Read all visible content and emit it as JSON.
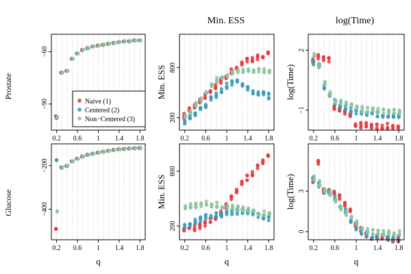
{
  "figure": {
    "column_titles": [
      "",
      "Min. ESS",
      "log(Time)"
    ],
    "row_labels": [
      "Prostate",
      "Glucose"
    ],
    "objective_ylabel": "",
    "x_axis_label": "q",
    "x_tick_labels": [
      "0.2",
      "0.6",
      "1",
      "1.4",
      "1.8"
    ],
    "colors": {
      "naive": "#e8383d",
      "centered": "#3d9ab5",
      "noncentered": "#8cc3a0"
    },
    "legend": {
      "entries": [
        {
          "key": "naive",
          "label": "Naive (1)"
        },
        {
          "key": "centered",
          "label": "Centered (2)"
        },
        {
          "key": "noncentered",
          "label": "Non−Centered (3)"
        }
      ]
    }
  },
  "chart_data": [
    {
      "id": "prostate-objective",
      "type": "scatter",
      "row": "Prostate",
      "column": "objective",
      "xlim": [
        0.1,
        1.9
      ],
      "ylim": [
        -105,
        -50
      ],
      "y_ticks": [
        -90,
        -60
      ],
      "ylabel": "",
      "x": [
        0.2,
        0.3,
        0.4,
        0.5,
        0.6,
        0.7,
        0.8,
        0.9,
        1.0,
        1.1,
        1.2,
        1.3,
        1.4,
        1.5,
        1.6,
        1.7,
        1.8
      ],
      "series": [
        {
          "name": "Naive (1)",
          "key": "naive",
          "values": [
            -97,
            -72,
            -71,
            -64,
            -61,
            -59,
            -58,
            -57,
            -56.5,
            -56,
            -55.5,
            -55,
            -54.5,
            -54,
            -54,
            -53.5,
            -53.5
          ]
        },
        {
          "name": "Centered (2)",
          "key": "centered",
          "values": [
            -98,
            -72,
            -71,
            -64,
            -61,
            -59,
            -58,
            -57,
            -56.5,
            -56,
            -55.5,
            -55,
            -54.5,
            -54,
            -54,
            -53.5,
            -53.5
          ]
        },
        {
          "name": "Non−Centered (3)",
          "key": "noncentered",
          "values": [
            -97.5,
            -72,
            -71,
            -64,
            -61,
            -59,
            -58,
            -57,
            -56.5,
            -56,
            -55.5,
            -55,
            -54.5,
            -54,
            -54,
            -53.5,
            -53.5
          ]
        }
      ]
    },
    {
      "id": "prostate-miness",
      "type": "scatter",
      "row": "Prostate",
      "column": "Min. ESS",
      "xlim": [
        0.1,
        1.9
      ],
      "ylim": [
        50,
        1200
      ],
      "y_ticks": [
        200,
        800
      ],
      "ylabel": "Min. ESS",
      "x": [
        0.2,
        0.3,
        0.4,
        0.5,
        0.6,
        0.7,
        0.8,
        0.9,
        1.0,
        1.1,
        1.2,
        1.3,
        1.4,
        1.5,
        1.6,
        1.7,
        1.8
      ],
      "series": [
        {
          "name": "Naive (1)",
          "key": "naive",
          "values": [
            220,
            300,
            330,
            400,
            460,
            520,
            580,
            640,
            700,
            760,
            800,
            850,
            880,
            900,
            920,
            940,
            960
          ]
        },
        {
          "name": "Centered (2)",
          "key": "centered",
          "values": [
            150,
            200,
            250,
            300,
            350,
            420,
            470,
            520,
            580,
            620,
            650,
            600,
            560,
            520,
            500,
            480,
            460
          ]
        },
        {
          "name": "Non−Centered (3)",
          "key": "noncentered",
          "values": [
            200,
            280,
            350,
            420,
            520,
            600,
            650,
            700,
            720,
            740,
            750,
            760,
            760,
            770,
            770,
            770,
            770
          ]
        }
      ]
    },
    {
      "id": "prostate-logtime",
      "type": "scatter",
      "row": "Prostate",
      "column": "log(Time)",
      "xlim": [
        0.1,
        1.9
      ],
      "ylim": [
        -2.0,
        2.8
      ],
      "y_ticks": [
        -1,
        2
      ],
      "ylabel": "log(Time)",
      "x": [
        0.2,
        0.3,
        0.4,
        0.5,
        0.6,
        0.7,
        0.8,
        0.9,
        1.0,
        1.1,
        1.2,
        1.3,
        1.4,
        1.5,
        1.6,
        1.7,
        1.8
      ],
      "series": [
        {
          "name": "Naive (1)",
          "key": "naive",
          "values": [
            1.5,
            1.7,
            1.6,
            1.5,
            -0.9,
            -1.0,
            -1.1,
            -1.2,
            -1.7,
            -1.75,
            -1.75,
            -1.8,
            -1.8,
            -1.8,
            -1.8,
            -1.8,
            -1.8
          ]
        },
        {
          "name": "Centered (2)",
          "key": "centered",
          "values": [
            1.4,
            1.2,
            0.2,
            -0.3,
            -0.6,
            -0.8,
            -0.9,
            -1.0,
            -1.1,
            -1.15,
            -1.2,
            -1.2,
            -1.2,
            -1.25,
            -1.25,
            -1.25,
            -1.25
          ]
        },
        {
          "name": "Non−Centered (3)",
          "key": "noncentered",
          "values": [
            1.8,
            1.3,
            0.3,
            -0.2,
            -0.5,
            -0.6,
            -0.7,
            -0.8,
            -0.9,
            -0.95,
            -1.0,
            -1.0,
            -1.0,
            -1.05,
            -1.05,
            -1.05,
            -1.05
          ]
        }
      ]
    },
    {
      "id": "glucose-objective",
      "type": "scatter",
      "row": "Glucose",
      "column": "objective",
      "xlim": [
        0.1,
        1.9
      ],
      "ylim": [
        -540,
        -100
      ],
      "y_ticks": [
        -400,
        -200
      ],
      "ylabel": "",
      "x": [
        0.2,
        0.3,
        0.4,
        0.5,
        0.6,
        0.7,
        0.8,
        0.9,
        1.0,
        1.1,
        1.2,
        1.3,
        1.4,
        1.5,
        1.6,
        1.7,
        1.8
      ],
      "series": [
        {
          "name": "Naive (1)",
          "key": "naive",
          "values": [
            -490,
            -208,
            -200,
            -180,
            -168,
            -158,
            -150,
            -145,
            -140,
            -136,
            -132,
            -128,
            -125,
            -123,
            -121,
            -120,
            -119
          ]
        },
        {
          "name": "Centered (2)",
          "key": "centered",
          "values": [
            -175,
            -210,
            -202,
            -181,
            -168,
            -158,
            -150,
            -145,
            -140,
            -136,
            -132,
            -128,
            -125,
            -123,
            -121,
            -120,
            -119
          ]
        },
        {
          "name": "Non−Centered (3)",
          "key": "noncentered",
          "values": [
            -410,
            -208,
            -200,
            -180,
            -168,
            -158,
            -150,
            -145,
            -140,
            -136,
            -132,
            -128,
            -125,
            -123,
            -121,
            -120,
            -119
          ]
        }
      ]
    },
    {
      "id": "glucose-miness",
      "type": "scatter",
      "row": "Glucose",
      "column": "Min. ESS",
      "xlim": [
        0.1,
        1.9
      ],
      "ylim": [
        50,
        1100
      ],
      "y_ticks": [
        200,
        800
      ],
      "ylabel": "Min. ESS",
      "x": [
        0.2,
        0.3,
        0.4,
        0.5,
        0.6,
        0.7,
        0.8,
        0.9,
        1.0,
        1.1,
        1.2,
        1.3,
        1.4,
        1.5,
        1.6,
        1.7,
        1.8
      ],
      "series": [
        {
          "name": "Naive (1)",
          "key": "naive",
          "values": [
            150,
            160,
            180,
            200,
            230,
            260,
            300,
            350,
            420,
            500,
            580,
            660,
            730,
            780,
            850,
            900,
            950
          ]
        },
        {
          "name": "Centered (2)",
          "key": "centered",
          "values": [
            200,
            220,
            250,
            280,
            300,
            310,
            320,
            330,
            340,
            350,
            360,
            360,
            350,
            340,
            320,
            300,
            280
          ]
        },
        {
          "name": "Non−Centered (3)",
          "key": "noncentered",
          "values": [
            400,
            420,
            430,
            440,
            450,
            440,
            430,
            420,
            410,
            400,
            390,
            380,
            370,
            360,
            350,
            340,
            330
          ]
        }
      ]
    },
    {
      "id": "glucose-logtime",
      "type": "scatter",
      "row": "Glucose",
      "column": "log(Time)",
      "xlim": [
        0.1,
        1.9
      ],
      "ylim": [
        -0.6,
        6.5
      ],
      "y_ticks": [
        0,
        3
      ],
      "ylabel": "log(Time)",
      "x": [
        0.2,
        0.3,
        0.4,
        0.5,
        0.6,
        0.7,
        0.8,
        0.9,
        1.0,
        1.1,
        1.2,
        1.3,
        1.4,
        1.5,
        1.6,
        1.7,
        1.8
      ],
      "series": [
        {
          "name": "Naive (1)",
          "key": "naive",
          "values": [
            3.8,
            5.2,
            3.0,
            3.0,
            2.8,
            2.6,
            2.0,
            1.5,
            0.5,
            0.2,
            -0.2,
            -0.4,
            -0.5,
            -0.55,
            -0.6,
            -0.6,
            -0.6
          ]
        },
        {
          "name": "Centered (2)",
          "key": "centered",
          "values": [
            3.9,
            3.5,
            3.0,
            2.9,
            2.5,
            2.0,
            1.5,
            0.8,
            0.3,
            0.0,
            -0.2,
            -0.3,
            -0.4,
            -0.4,
            -0.45,
            -0.45,
            -0.45
          ]
        },
        {
          "name": "Non−Centered (3)",
          "key": "noncentered",
          "values": [
            4.0,
            3.6,
            3.1,
            2.8,
            2.3,
            1.8,
            1.4,
            1.0,
            0.6,
            0.3,
            0.1,
            0.0,
            -0.1,
            -0.1,
            -0.1,
            -0.1,
            -0.1
          ]
        }
      ]
    }
  ]
}
